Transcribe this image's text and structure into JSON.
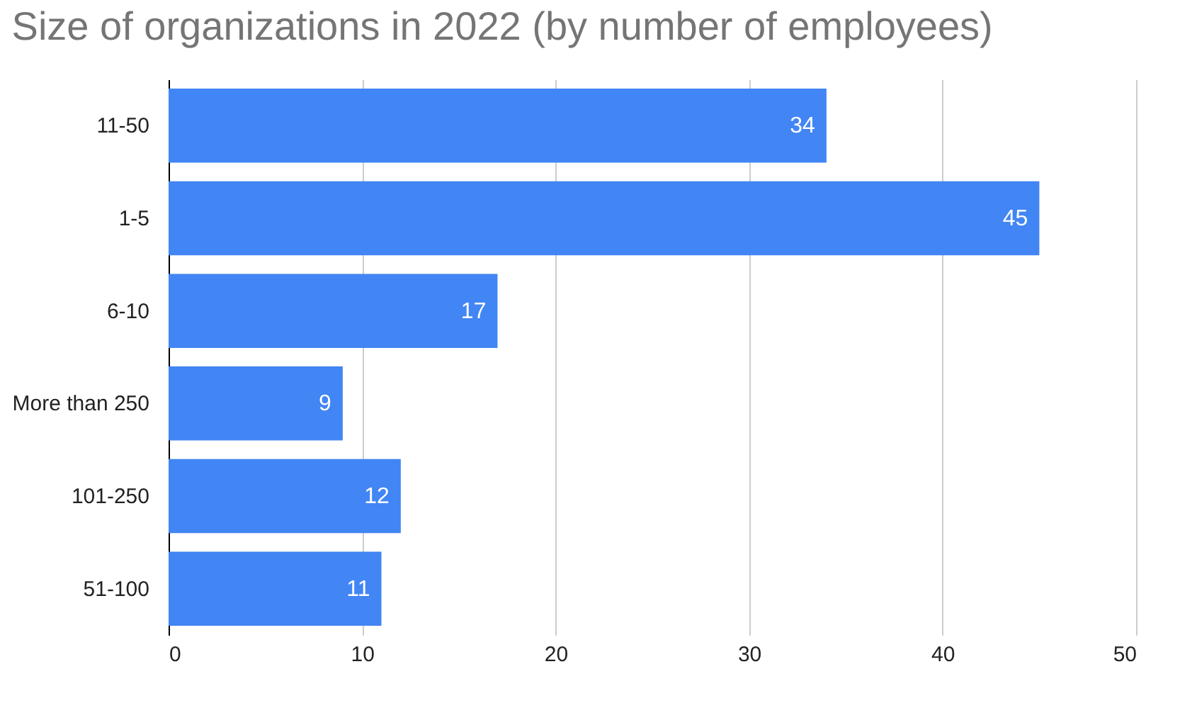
{
  "chart_data": {
    "type": "bar",
    "orientation": "horizontal",
    "title": "Size of organizations in 2022 (by number of employees)",
    "categories": [
      "11-50",
      "1-5",
      "6-10",
      "More than 250",
      "101-250",
      "51-100"
    ],
    "values": [
      34,
      45,
      17,
      9,
      12,
      11
    ],
    "color": "#4285f4",
    "xlim": [
      0,
      50
    ],
    "xticks": [
      0,
      10,
      20,
      30,
      40,
      50
    ],
    "grid": "x",
    "data_labels": true
  }
}
